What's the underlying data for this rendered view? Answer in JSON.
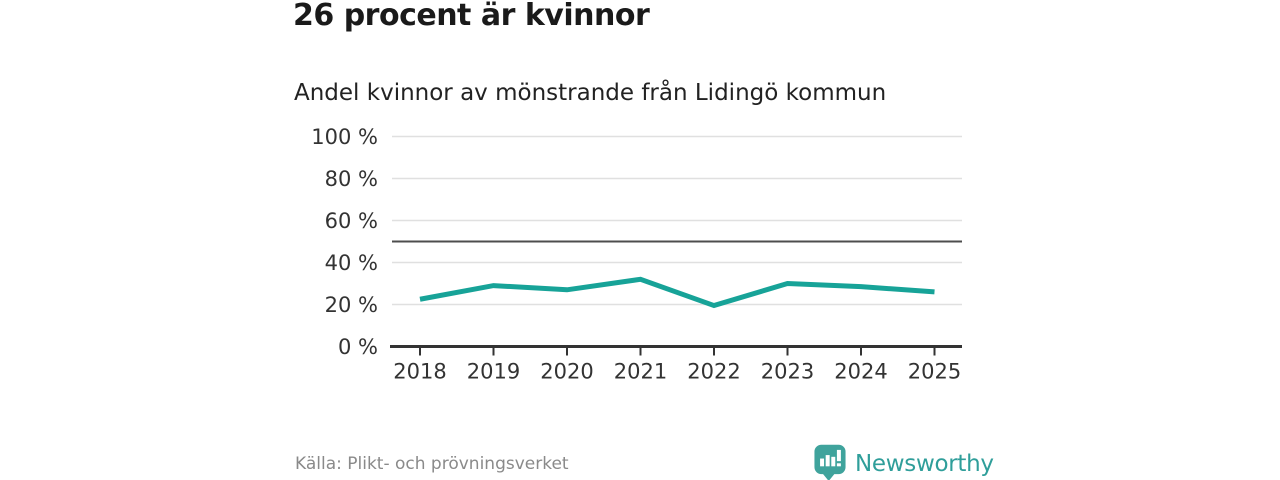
{
  "header": {
    "title": "26 procent är kvinnor"
  },
  "chart_data": {
    "type": "line",
    "title": "Andel kvinnor av mönstrande från Lidingö kommun",
    "x": [
      "2018",
      "2019",
      "2020",
      "2021",
      "2022",
      "2023",
      "2024",
      "2025"
    ],
    "series": [
      {
        "name": "Andel kvinnor av mönstrande",
        "values": [
          22.5,
          29,
          27,
          32,
          19.5,
          30,
          28.5,
          26
        ]
      }
    ],
    "xlabel": "",
    "ylabel": "",
    "ylim": [
      0,
      100
    ],
    "yticks": [
      0,
      20,
      40,
      60,
      80,
      100
    ],
    "ytick_suffix": " %",
    "reference_line": 50,
    "grid": true,
    "legend_position": "none",
    "line_color": "#17a398",
    "reference_color": "#4d4d4d",
    "grid_color": "#e0e0e0",
    "axis_color": "#333333",
    "tick_label_color": "#333333"
  },
  "footer": {
    "source": "Källa: Plikt- och prövningsverket",
    "brand": "Newsworthy"
  },
  "colors": {
    "accent_teal": "#17a398",
    "brand_teal": "#2f9e9a",
    "logo_teal": "#3fa39c"
  }
}
